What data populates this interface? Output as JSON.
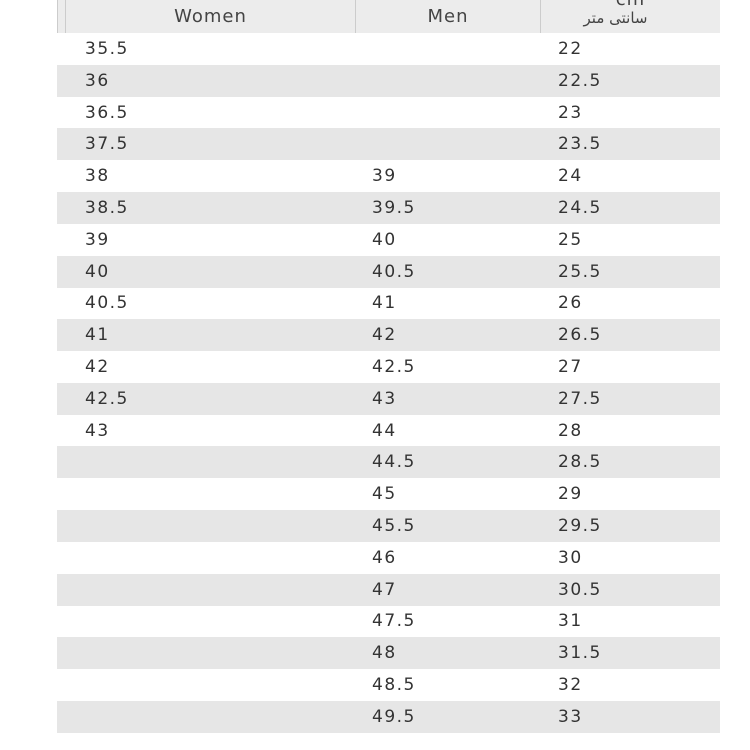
{
  "table": {
    "header": [
      "Women",
      "Men",
      {
        "top": "cm",
        "bottom": "سانتی متر"
      }
    ],
    "rows": [
      [
        "35.5",
        null,
        "22"
      ],
      [
        "36",
        null,
        "22.5"
      ],
      [
        "36.5",
        null,
        "23"
      ],
      [
        "37.5",
        null,
        "23.5"
      ],
      [
        "38",
        "39",
        "24"
      ],
      [
        "38.5",
        "39.5",
        "24.5"
      ],
      [
        "39",
        "40",
        "25"
      ],
      [
        "40",
        "40.5",
        "25.5"
      ],
      [
        "40.5",
        "41",
        "26"
      ],
      [
        "41",
        "42",
        "26.5"
      ],
      [
        "42",
        "42.5",
        "27"
      ],
      [
        "42.5",
        "43",
        "27.5"
      ],
      [
        "43",
        "44",
        "28"
      ],
      [
        null,
        "44.5",
        "28.5"
      ],
      [
        null,
        "45",
        "29"
      ],
      [
        null,
        "45.5",
        "29.5"
      ],
      [
        null,
        "46",
        "30"
      ],
      [
        null,
        "47",
        "30.5"
      ],
      [
        null,
        "47.5",
        "31"
      ],
      [
        null,
        "48",
        "31.5"
      ],
      [
        null,
        "48.5",
        "32"
      ],
      [
        null,
        "49.5",
        "33"
      ]
    ]
  }
}
